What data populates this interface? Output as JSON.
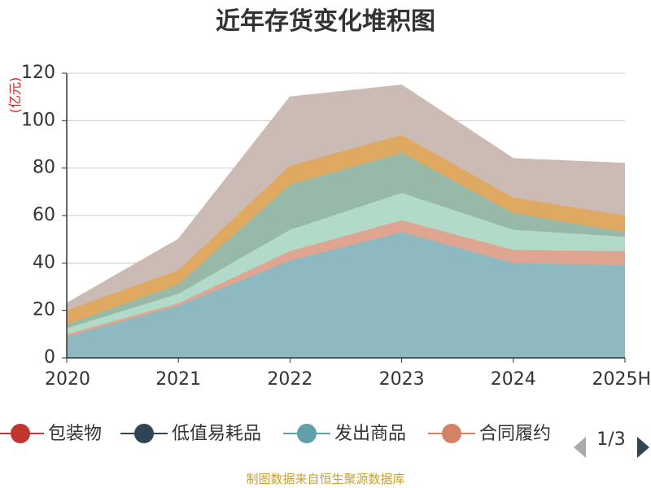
{
  "chart_data": {
    "type": "area",
    "stacked": true,
    "title": "近年存货变化堆积图",
    "ylabel": "(亿元)",
    "xlabel": "",
    "categories": [
      "2020",
      "2021",
      "2022",
      "2023",
      "2024",
      "2025H"
    ],
    "ylim": [
      0,
      120
    ],
    "yticks": [
      0,
      20,
      40,
      60,
      80,
      100,
      120
    ],
    "grid": true,
    "series": [
      {
        "name": "",
        "color": "#8fb9c0",
        "values": [
          9,
          22,
          41,
          53,
          40,
          39
        ]
      },
      {
        "name": "",
        "color": "#e0a590",
        "values": [
          1,
          1,
          4,
          5,
          5.5,
          6
        ]
      },
      {
        "name": "",
        "color": "#b1dac9",
        "values": [
          2.5,
          4,
          9,
          11.5,
          8.5,
          6
        ]
      },
      {
        "name": "",
        "color": "#98b9a7",
        "values": [
          1.5,
          4,
          19,
          17,
          7,
          2
        ]
      },
      {
        "name": "",
        "color": "#dfa961",
        "values": [
          6,
          6,
          8,
          7.5,
          6.5,
          7
        ]
      },
      {
        "name": "",
        "color": "#ccbab4",
        "values": [
          3,
          13,
          29,
          21,
          16.5,
          22
        ]
      }
    ],
    "legend": {
      "position": "bottom",
      "visible_items": [
        {
          "label": "包装物",
          "color": "#c23531",
          "icon": "circle-line"
        },
        {
          "label": "低值易耗品",
          "color": "#2f4554",
          "icon": "circle-line"
        },
        {
          "label": "发出商品",
          "color": "#61a0a8",
          "icon": "circle-line"
        },
        {
          "label": "合同履约",
          "color": "#d48265",
          "icon": "circle-line"
        }
      ],
      "page": "1/3",
      "prev_icon": "triangle-left-icon",
      "next_icon": "triangle-right-icon"
    },
    "source": "制图数据来自恒生聚源数据库"
  }
}
